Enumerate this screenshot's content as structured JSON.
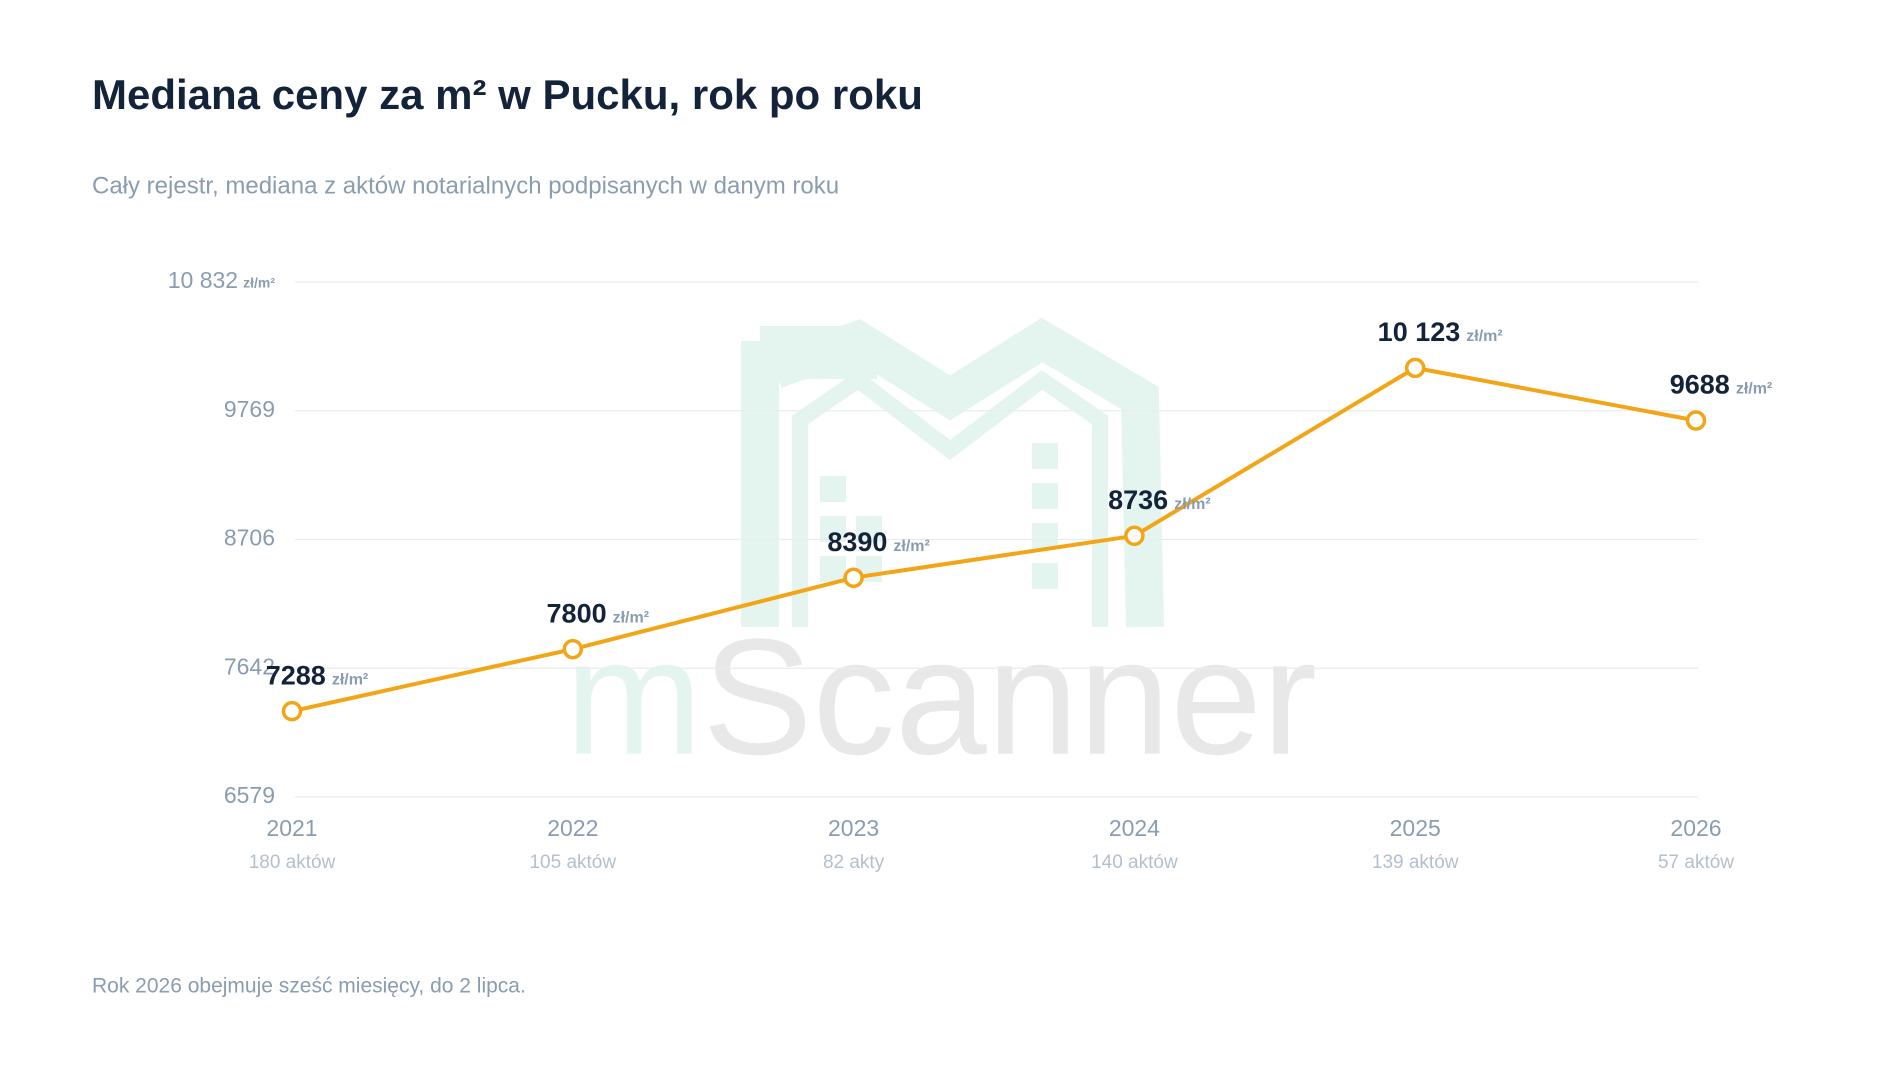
{
  "chart_data": {
    "type": "line",
    "title": "Mediana ceny za m² w Pucku, rok po roku",
    "subtitle": "Cały rejestr, mediana z aktów notarialnych podpisanych w danym roku",
    "categories": [
      "2021",
      "2022",
      "2023",
      "2024",
      "2025",
      "2026"
    ],
    "category_notes": [
      "180 aktów",
      "105 aktów",
      "82 akty",
      "140 aktów",
      "139 aktów",
      "57 aktów"
    ],
    "series": [
      {
        "color": "#f2a516",
        "values": [
          7288,
          7800,
          8390,
          8736,
          10123,
          9688
        ],
        "value_labels": [
          "7288",
          "7800",
          "8390",
          "8736",
          "10 123",
          "9688"
        ]
      }
    ],
    "value_unit": "zł/m²",
    "ylim": [
      6579,
      10832
    ],
    "yticks": [
      6579,
      7642,
      8706,
      9769,
      {
        "value": 10832,
        "label": "10 832"
      }
    ],
    "grid": true,
    "watermark": "mScanner",
    "footnote": "Rok 2026 obejmuje sześć miesięcy, do 2 lipca."
  }
}
